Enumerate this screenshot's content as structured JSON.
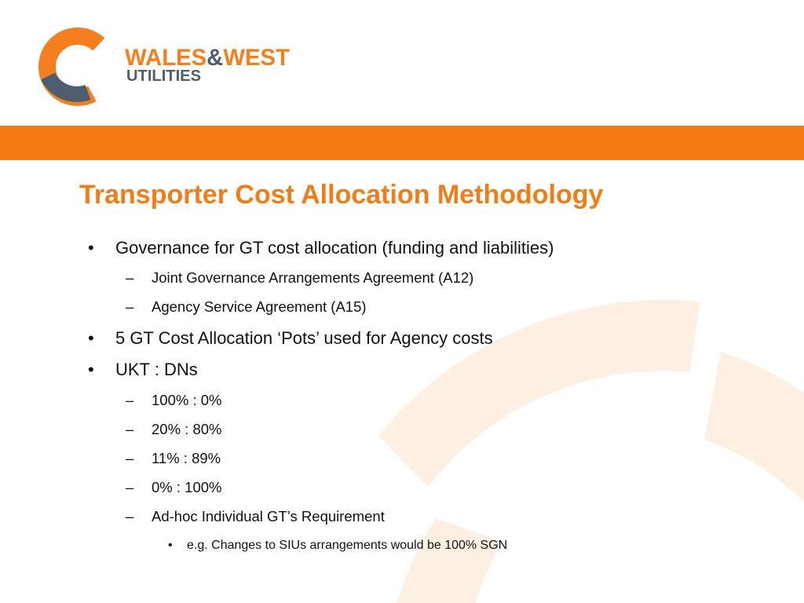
{
  "brand": {
    "name_line1": "WALES&WEST",
    "name_line2": "UTILITIES",
    "orange": "#f57f1f",
    "slate": "#4d5f6e",
    "band_color": "#f57c14",
    "watermark_color": "#fdf0e3"
  },
  "slide": {
    "title": "Transporter Cost Allocation Methodology",
    "title_color": "#f07d17",
    "bullets": [
      {
        "level": 1,
        "marker": "•",
        "text": "Governance for GT cost allocation (funding and liabilities)"
      },
      {
        "level": 2,
        "marker": "–",
        "text": "Joint Governance Arrangements Agreement (A12)"
      },
      {
        "level": 2,
        "marker": "–",
        "text": "Agency Service Agreement (A15)"
      },
      {
        "level": 1,
        "marker": "•",
        "text": "5 GT Cost Allocation ‘Pots’ used for Agency costs"
      },
      {
        "level": 1,
        "marker": "•",
        "text": "UKT : DNs"
      },
      {
        "level": 2,
        "marker": "–",
        "text": "100% : 0%"
      },
      {
        "level": 2,
        "marker": "–",
        "text": "20% : 80%"
      },
      {
        "level": 2,
        "marker": "–",
        "text": "11% : 89%"
      },
      {
        "level": 2,
        "marker": "–",
        "text": "0% : 100%"
      },
      {
        "level": 2,
        "marker": "–",
        "text": "Ad-hoc Individual GT’s Requirement"
      },
      {
        "level": 3,
        "marker": "•",
        "text": "e.g. Changes to SIUs arrangements would be 100% SGN"
      }
    ]
  }
}
